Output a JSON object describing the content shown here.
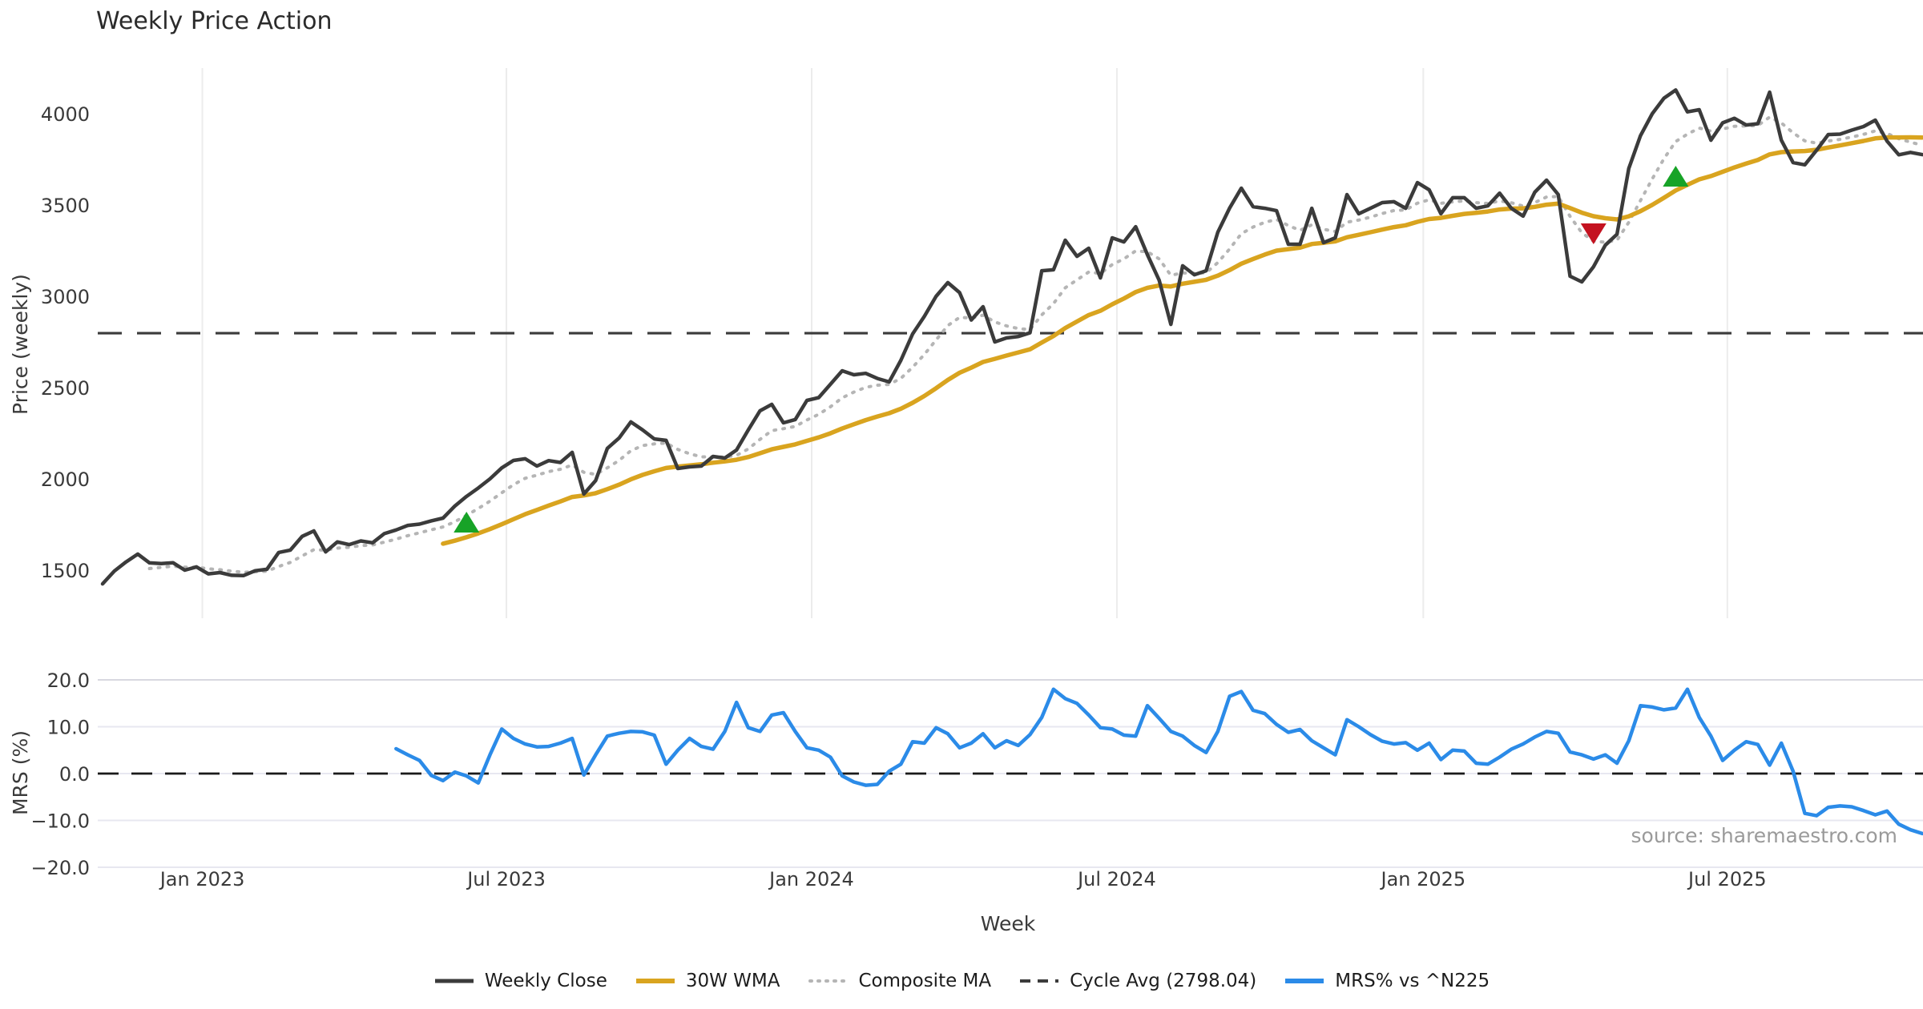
{
  "title": "Weekly Price Action",
  "source_note": "source: sharemaestro.com",
  "axes": {
    "price": {
      "label": "Price (weekly)",
      "tick_labels": [
        "4000",
        "3500",
        "3000",
        "2500",
        "2000",
        "1500"
      ]
    },
    "mrs": {
      "label": "MRS (%)",
      "tick_labels": [
        "20.0",
        "10.0",
        "0.0",
        "−10.0",
        "−20.0"
      ]
    },
    "x": {
      "label": "Week",
      "tick_labels": [
        "Jan 2023",
        "Jul 2023",
        "Jan 2024",
        "Jul 2024",
        "Jan 2025",
        "Jul 2025"
      ]
    }
  },
  "legend": {
    "items": [
      {
        "label": "Weekly Close",
        "swatch": "solid-dark"
      },
      {
        "label": "30W WMA",
        "swatch": "solid-gold"
      },
      {
        "label": "Composite MA",
        "swatch": "dotted-gray"
      },
      {
        "label": "Cycle Avg (2798.04)",
        "swatch": "dashed-dark"
      },
      {
        "label": "MRS% vs ^N225",
        "swatch": "solid-blue"
      }
    ]
  },
  "colors": {
    "close": "#3b3b3b",
    "wma": "#d9a41f",
    "composite": "#b5b5b5",
    "cycle": "#3b3b3b",
    "mrs": "#2b8be8",
    "buy_marker": "#17a327",
    "sell_marker": "#c41220",
    "grid_top": "#ececec",
    "grid_bottom": "#e7e7f0",
    "text": "#3a3a3a",
    "source": "#9a9a9a"
  },
  "chart_data": {
    "type": "line",
    "title": "Weekly Price Action",
    "xlabel": "Week",
    "x_unit": "weekly index, week 0 ≈ Nov 2022",
    "weeks_total": 156,
    "x_tick_weeks": [
      8.5,
      34.4,
      60.4,
      86.4,
      112.5,
      138.4
    ],
    "x_tick_labels": [
      "Jan 2023",
      "Jul 2023",
      "Jan 2024",
      "Jul 2024",
      "Jan 2025",
      "Jul 2025"
    ],
    "top_panel": {
      "ylabel": "Price (weekly)",
      "yticks": [
        4000,
        3500,
        3000,
        2500,
        2000,
        1500
      ],
      "ylim": [
        1240,
        4255
      ],
      "grid": "vertical-only",
      "cycle_avg": 2798.04
    },
    "bottom_panel": {
      "ylabel": "MRS (%)",
      "yticks": [
        20,
        10,
        0,
        -10,
        -20
      ],
      "ylim": [
        -20.5,
        21.5
      ],
      "grid": "horizontal-only",
      "zero_line": 0
    },
    "series": [
      {
        "name": "Weekly Close",
        "style": "solid",
        "start_week": 0,
        "values": [
          1425,
          1495,
          1545,
          1588,
          1540,
          1536,
          1541,
          1500,
          1518,
          1480,
          1487,
          1472,
          1470,
          1497,
          1505,
          1597,
          1610,
          1685,
          1715,
          1600,
          1655,
          1640,
          1660,
          1650,
          1700,
          1720,
          1745,
          1752,
          1770,
          1785,
          1851,
          1904,
          1950,
          2000,
          2060,
          2101,
          2110,
          2070,
          2100,
          2090,
          2145,
          1917,
          1991,
          2167,
          2224,
          2312,
          2268,
          2219,
          2211,
          2057,
          2066,
          2070,
          2123,
          2114,
          2158,
          2268,
          2373,
          2408,
          2307,
          2325,
          2430,
          2445,
          2518,
          2592,
          2570,
          2578,
          2550,
          2531,
          2649,
          2794,
          2890,
          3000,
          3075,
          3020,
          2870,
          2943,
          2750,
          2772,
          2780,
          2800,
          3140,
          3145,
          3307,
          3219,
          3263,
          3101,
          3320,
          3298,
          3381,
          3228,
          3088,
          2846,
          3167,
          3118,
          3140,
          3351,
          3483,
          3592,
          3491,
          3482,
          3469,
          3285,
          3285,
          3482,
          3294,
          3320,
          3557,
          3452,
          3482,
          3513,
          3518,
          3482,
          3623,
          3583,
          3452,
          3540,
          3540,
          3482,
          3495,
          3565,
          3482,
          3439,
          3570,
          3636,
          3557,
          3110,
          3079,
          3162,
          3280,
          3340,
          3700,
          3880,
          4000,
          4085,
          4130,
          4010,
          4022,
          3855,
          3950,
          3975,
          3938,
          3945,
          4118,
          3855,
          3732,
          3720,
          3800,
          3886,
          3888,
          3910,
          3930,
          3965,
          3850,
          3775,
          3788,
          3776
        ]
      },
      {
        "name": "30W WMA",
        "style": "solid",
        "derived": "linear-weighted moving average (30 weeks) of Weekly Close, plotted from week 29"
      },
      {
        "name": "Composite MA",
        "style": "dotted",
        "derived": "smoothed composite (EMA α=0.25) of Weekly Close, plotted from week 4"
      },
      {
        "name": "Cycle Avg (2798.04)",
        "style": "dashed",
        "value": 2798.04
      },
      {
        "name": "MRS% vs ^N225",
        "style": "solid",
        "start_week": 25,
        "values": [
          5.3,
          4.0,
          2.8,
          -0.4,
          -1.5,
          0.3,
          -0.5,
          -2.0,
          4.0,
          9.5,
          7.5,
          6.3,
          5.7,
          5.8,
          6.5,
          7.5,
          -0.3,
          4.0,
          8.0,
          8.6,
          9.0,
          8.9,
          8.2,
          2.0,
          5.0,
          7.5,
          5.8,
          5.2,
          9.0,
          15.2,
          9.8,
          9.0,
          12.5,
          13.0,
          9.0,
          5.5,
          5.0,
          3.5,
          -0.5,
          -1.8,
          -2.5,
          -2.3,
          0.5,
          2.0,
          6.8,
          6.5,
          9.8,
          8.5,
          5.5,
          6.5,
          8.5,
          5.5,
          7.0,
          6.0,
          8.3,
          12.0,
          18.0,
          16.0,
          15.0,
          12.5,
          9.8,
          9.5,
          8.2,
          8.0,
          14.5,
          11.8,
          9.0,
          8.0,
          6.0,
          4.5,
          9.0,
          16.5,
          17.5,
          13.5,
          12.8,
          10.5,
          8.8,
          9.4,
          7.0,
          5.5,
          4.0,
          11.5,
          10.0,
          8.3,
          6.9,
          6.3,
          6.6,
          5.0,
          6.5,
          3.0,
          5.0,
          4.8,
          2.2,
          2.0,
          3.5,
          5.2,
          6.3,
          7.8,
          9.0,
          8.6,
          4.6,
          4.0,
          3.1,
          4.0,
          2.2,
          7.0,
          14.5,
          14.2,
          13.6,
          14.0,
          18.0,
          12.0,
          8.0,
          2.8,
          5.0,
          6.8,
          6.2,
          1.8,
          6.5,
          0.5,
          -8.5,
          -9.0,
          -7.2,
          -6.9,
          -7.1,
          -7.9,
          -8.8,
          -8.0,
          -10.8,
          -12.0,
          -12.8
        ]
      }
    ],
    "markers": [
      {
        "shape": "triangle-up",
        "signal": "buy",
        "week": 31,
        "price": 1763
      },
      {
        "shape": "triangle-down",
        "signal": "sell",
        "week": 127,
        "price": 3342
      },
      {
        "shape": "triangle-up",
        "signal": "buy",
        "week": 134,
        "price": 3658
      }
    ],
    "legend_position": "bottom-center"
  }
}
